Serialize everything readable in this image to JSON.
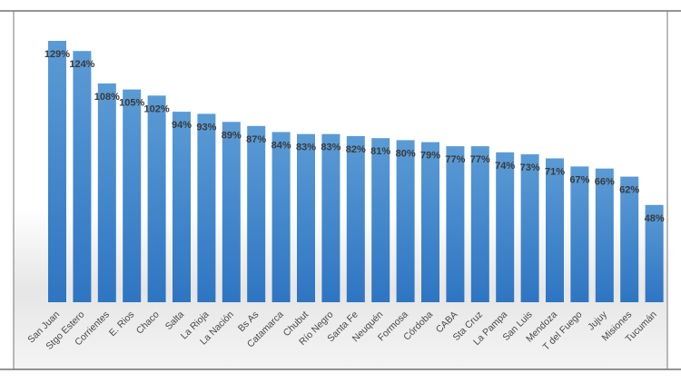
{
  "chart_data": {
    "type": "bar",
    "title": "",
    "xlabel": "",
    "ylabel": "",
    "ylim": [
      0,
      135
    ],
    "grid": false,
    "legend": "none",
    "categories": [
      "San Juan",
      "Stgo Estero",
      "Corrientes",
      "E. Rios",
      "Chaco",
      "Salta",
      "La Rioja",
      "La Nación",
      "Bs As",
      "Catamarca",
      "Chubut",
      "Río Negro",
      "Santa Fe",
      "Neuquén",
      "Formosa",
      "Córdoba",
      "CABA",
      "Sta Cruz",
      "La Pampa",
      "San Luis",
      "Mendoza",
      "T del Fuego",
      "Jujuy",
      "Misiones",
      "Tucumán"
    ],
    "values": [
      129,
      124,
      108,
      105,
      102,
      94,
      93,
      89,
      87,
      84,
      83,
      83,
      82,
      81,
      80,
      79,
      77,
      77,
      74,
      73,
      71,
      67,
      66,
      62,
      48
    ],
    "data_labels": [
      "129%",
      "124%",
      "108%",
      "105%",
      "102%",
      "94%",
      "93%",
      "89%",
      "87%",
      "84%",
      "83%",
      "83%",
      "82%",
      "81%",
      "80%",
      "79%",
      "77%",
      "77%",
      "74%",
      "73%",
      "71%",
      "67%",
      "66%",
      "62%",
      "48%"
    ],
    "colors": {
      "bar_top": "#5b9bd5",
      "bar_bottom": "#2e75c2",
      "label": "#3a3a3a",
      "category_label": "#4a4a4a",
      "frame": "#555555",
      "background_band": "#e9e9e9"
    }
  }
}
